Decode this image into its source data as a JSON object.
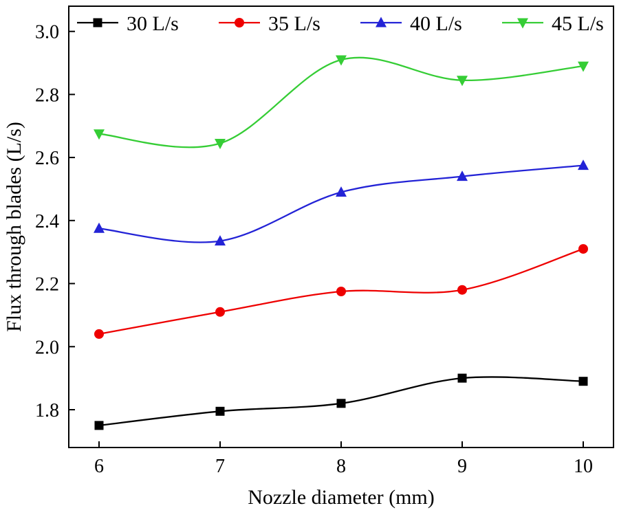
{
  "chart_data": {
    "type": "line",
    "title": "",
    "xlabel": "Nozzle diameter (mm)",
    "ylabel": "Flux through blades (L/s)",
    "x": [
      6,
      7,
      8,
      9,
      10
    ],
    "xticks": [
      "6",
      "7",
      "8",
      "9",
      "10"
    ],
    "yticks": [
      1.8,
      2.0,
      2.2,
      2.4,
      2.6,
      2.8,
      3.0
    ],
    "xlim": [
      5.75,
      10.25
    ],
    "ylim": [
      1.68,
      3.08
    ],
    "grid": false,
    "legend_position": "top-inside-horizontal",
    "line_style": "smooth",
    "series": [
      {
        "name": "30 L/s",
        "color": "#000000",
        "marker": "square",
        "values": [
          1.75,
          1.795,
          1.82,
          1.9,
          1.89
        ]
      },
      {
        "name": "35 L/s",
        "color": "#ee0000",
        "marker": "circle",
        "values": [
          2.04,
          2.11,
          2.175,
          2.18,
          2.31
        ]
      },
      {
        "name": "40 L/s",
        "color": "#2323d6",
        "marker": "triangle-up",
        "values": [
          2.375,
          2.335,
          2.49,
          2.54,
          2.575
        ]
      },
      {
        "name": "45 L/s",
        "color": "#35cd35",
        "marker": "triangle-down",
        "values": [
          2.675,
          2.645,
          2.91,
          2.845,
          2.89
        ]
      }
    ]
  }
}
